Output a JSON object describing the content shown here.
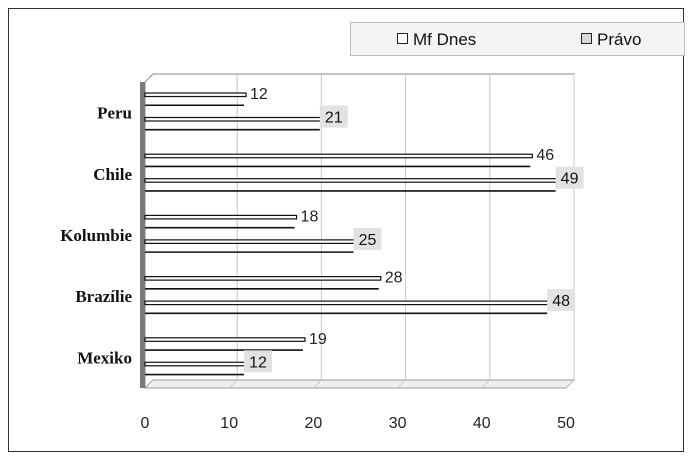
{
  "chart_data": {
    "type": "bar",
    "orientation": "horizontal",
    "categories": [
      "Peru",
      "Chile",
      "Kolumbie",
      "Brazílie",
      "Mexiko"
    ],
    "series": [
      {
        "name": "Mf Dnes",
        "values": [
          12,
          46,
          18,
          28,
          19
        ]
      },
      {
        "name": "Právo",
        "values": [
          21,
          49,
          25,
          48,
          12
        ]
      }
    ],
    "xlim": [
      0,
      50
    ],
    "xticks": [
      "0",
      "10",
      "20",
      "30",
      "40",
      "50"
    ],
    "grid": true,
    "legend_position": "top-right",
    "title": "",
    "xlabel": "",
    "ylabel": "",
    "colors": {
      "bar_fill": "#ffffff",
      "bar_edge": "#111111",
      "label_box": "#e2e2e2",
      "axis_wall": "#7a7a7a",
      "grid": "#c8c8c8"
    }
  }
}
